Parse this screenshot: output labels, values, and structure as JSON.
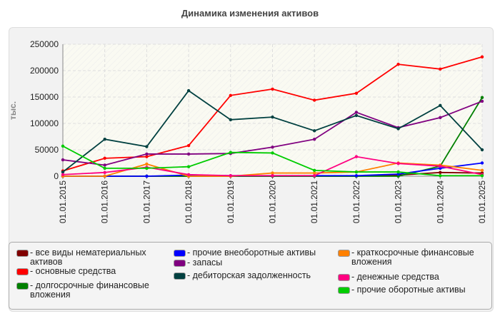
{
  "chart_data": {
    "type": "line",
    "title": "Динамика изменения активов",
    "ylabel": "тыс.",
    "xlabel": "",
    "ylim": [
      0,
      250000
    ],
    "yticks": [
      0,
      50000,
      100000,
      150000,
      200000,
      250000
    ],
    "grid": true,
    "legend_position": "bottom",
    "categories": [
      "01.01.2015",
      "01.01.2016",
      "01.01.2017",
      "01.01.2018",
      "01.01.2019",
      "01.01.2020",
      "01.01.2021",
      "01.01.2022",
      "01.01.2023",
      "01.01.2024",
      "01.01.2025"
    ],
    "series": [
      {
        "name": "все виды нематериальных активов",
        "color": "#800000",
        "values": [
          0,
          0,
          0,
          0,
          0,
          0,
          0,
          0,
          2000,
          7000,
          6000
        ]
      },
      {
        "name": "основные средства",
        "color": "#ff0000",
        "values": [
          10000,
          34000,
          37000,
          58000,
          153000,
          165000,
          144000,
          157000,
          212000,
          203000,
          226000
        ]
      },
      {
        "name": "долгосрочные финансовые вложения",
        "color": "#008000",
        "values": [
          0,
          0,
          0,
          0,
          0,
          0,
          0,
          0,
          0,
          19000,
          149000
        ]
      },
      {
        "name": "прочие внеоборотные активы",
        "color": "#0000ff",
        "values": [
          0,
          0,
          0,
          2000,
          1000,
          1000,
          1000,
          1000,
          4000,
          15000,
          25000
        ]
      },
      {
        "name": "запасы",
        "color": "#800080",
        "values": [
          31000,
          21000,
          42000,
          42000,
          43000,
          55000,
          70000,
          121000,
          92000,
          111000,
          142000
        ]
      },
      {
        "name": "дебиторская задолженность",
        "color": "#004040",
        "values": [
          8000,
          70000,
          56000,
          162000,
          107000,
          112000,
          86000,
          115000,
          90000,
          134000,
          50000
        ]
      },
      {
        "name": "краткосрочные финансовые вложения",
        "color": "#ff8000",
        "values": [
          0,
          0,
          23000,
          0,
          0,
          6000,
          6000,
          8000,
          25000,
          21000,
          11000
        ]
      },
      {
        "name": "денежные средства",
        "color": "#ff0080",
        "values": [
          3000,
          7000,
          17000,
          3000,
          1000,
          1000,
          1000,
          37000,
          24000,
          19000,
          3000
        ]
      },
      {
        "name": "прочие оборотные активы",
        "color": "#00cc00",
        "values": [
          57000,
          15000,
          15000,
          18000,
          45000,
          44000,
          11000,
          8000,
          8000,
          1000,
          1000
        ]
      }
    ]
  }
}
